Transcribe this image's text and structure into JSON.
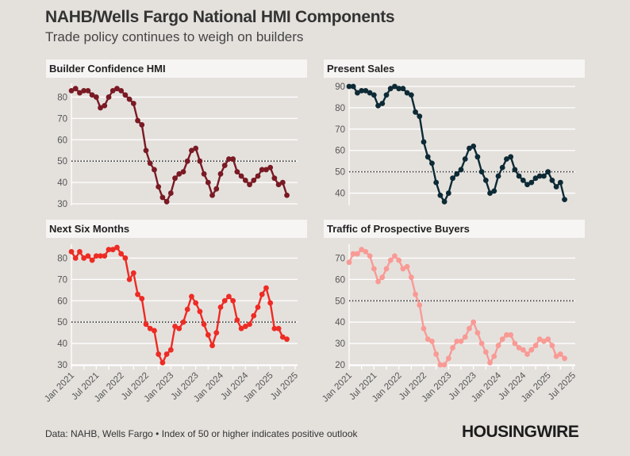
{
  "header": {
    "title": "NAHB/Wells Fargo National HMI Components",
    "subtitle": "Trade policy continues to weigh on builders"
  },
  "footer": {
    "source": "Data: NAHB, Wells Fargo • Index of 50 or higher indicates positive outlook",
    "logo": "HOUSINGWIRE"
  },
  "chart_data": [
    {
      "type": "line",
      "title": "Builder Confidence HMI",
      "color": "#7a1a24",
      "x_start": "Jan 2021",
      "x_end": "May 2025",
      "frequency": "monthly",
      "ylim": [
        30,
        85
      ],
      "yticks": [
        30,
        40,
        50,
        60,
        70,
        80
      ],
      "reference_line": 50,
      "values": [
        83,
        84,
        82,
        83,
        83,
        81,
        80,
        75,
        76,
        80,
        83,
        84,
        83,
        81,
        79,
        77,
        69,
        67,
        55,
        49,
        46,
        38,
        33,
        31,
        35,
        42,
        44,
        45,
        50,
        55,
        56,
        50,
        44,
        40,
        34,
        37,
        44,
        48,
        51,
        51,
        45,
        43,
        41,
        39,
        41,
        43,
        46,
        46,
        47,
        42,
        39,
        40,
        34
      ]
    },
    {
      "type": "line",
      "title": "Present Sales",
      "color": "#0d2a35",
      "x_start": "Jan 2021",
      "x_end": "May 2025",
      "frequency": "monthly",
      "ylim": [
        35,
        90
      ],
      "yticks": [
        40,
        50,
        60,
        70,
        80,
        90
      ],
      "reference_line": 50,
      "values": [
        90,
        90,
        87,
        88,
        88,
        87,
        86,
        81,
        82,
        86,
        89,
        90,
        89,
        89,
        87,
        86,
        78,
        76,
        64,
        57,
        54,
        45,
        39,
        36,
        40,
        47,
        49,
        51,
        56,
        61,
        62,
        57,
        50,
        46,
        40,
        41,
        48,
        52,
        56,
        57,
        51,
        48,
        46,
        44,
        45,
        47,
        48,
        48,
        50,
        46,
        43,
        45,
        37
      ]
    },
    {
      "type": "line",
      "title": "Next Six Months",
      "color": "#ee2b24",
      "x_start": "Jan 2021",
      "x_end": "May 2025",
      "frequency": "monthly",
      "ylim": [
        30,
        85
      ],
      "yticks": [
        30,
        40,
        50,
        60,
        70,
        80
      ],
      "reference_line": 50,
      "xtick_labels": [
        "Jan 2021",
        "Jul 2021",
        "Jan 2022",
        "Jul 2022",
        "Jan 2023",
        "Jul 2023",
        "Jan 2024",
        "Jul 2024",
        "Jan 2025",
        "Jul 2025"
      ],
      "values": [
        83,
        80,
        83,
        80,
        81,
        79,
        81,
        81,
        81,
        84,
        84,
        85,
        82,
        80,
        70,
        73,
        63,
        61,
        49,
        47,
        46,
        35,
        31,
        35,
        37,
        48,
        47,
        50,
        56,
        62,
        59,
        55,
        49,
        44,
        39,
        45,
        57,
        60,
        62,
        60,
        51,
        47,
        48,
        49,
        53,
        57,
        63,
        66,
        59,
        47,
        47,
        43,
        42
      ]
    },
    {
      "type": "line",
      "title": "Traffic of Prospective Buyers",
      "color": "#f99a95",
      "x_start": "Jan 2021",
      "x_end": "May 2025",
      "frequency": "monthly",
      "ylim": [
        20,
        75
      ],
      "yticks": [
        20,
        30,
        40,
        50,
        60,
        70
      ],
      "reference_line": 50,
      "xtick_labels": [
        "Jan 2021",
        "Jul 2021",
        "Jan 2022",
        "Jul 2022",
        "Jan 2023",
        "Jul 2023",
        "Jan 2024",
        "Jul 2024",
        "Jan 2025",
        "Jul 2025"
      ],
      "values": [
        68,
        72,
        72,
        74,
        73,
        71,
        65,
        59,
        61,
        65,
        69,
        71,
        69,
        65,
        66,
        61,
        53,
        48,
        37,
        32,
        31,
        25,
        20,
        20,
        23,
        28,
        31,
        31,
        33,
        37,
        40,
        35,
        30,
        26,
        21,
        24,
        29,
        32,
        34,
        34,
        30,
        28,
        27,
        25,
        27,
        29,
        32,
        31,
        32,
        29,
        24,
        25,
        23
      ]
    }
  ]
}
